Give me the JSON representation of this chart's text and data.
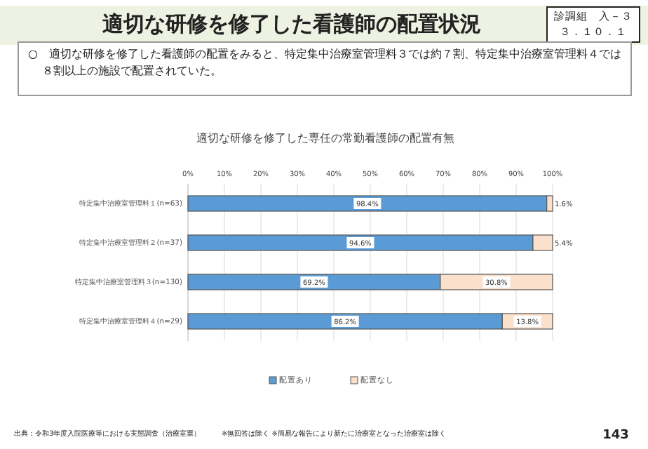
{
  "chart_data": {
    "type": "bar",
    "orientation": "horizontal",
    "stacked": true,
    "title": "適切な研修を修了した看護師の配置状況",
    "subtitle": "適切な研修を修了した専任の常勤看護師の配置有無",
    "annotations": [
      "診調組　入－３",
      "３．１０．１",
      "○　適切な研修を修了した看護師の配置をみると、特定集中治療室管理料３では約７割、特定集中治療室管理料４では８割以上の施設で配置されていた。",
      "出典：令和3年度入院医療等における実態調査（治療室票）",
      "※無回答は除く ※簡易な報告により新たに治療室となった治療室は除く",
      "143"
    ],
    "categories": [
      "特定集中治療室管理料１(n=63)",
      "特定集中治療室管理料２(n=37)",
      "特定集中治療室管理料３(n=130)",
      "特定集中治療室管理料４(n=29)"
    ],
    "series": [
      {
        "name": "配置あり",
        "color": "#5b9bd5",
        "values": [
          98.4,
          94.6,
          69.2,
          86.2
        ],
        "value_labels": [
          "98.4%",
          "94.6%",
          "69.2%",
          "86.2%"
        ]
      },
      {
        "name": "配置なし",
        "color": "#fbe0cc",
        "values": [
          1.6,
          5.4,
          30.8,
          13.8
        ],
        "value_labels": [
          "1.6%",
          "5.4%",
          "30.8%",
          "13.8%"
        ]
      }
    ],
    "xlim": [
      0,
      100
    ],
    "xticks": [
      {
        "value": 0,
        "label": "0%"
      },
      {
        "value": 10,
        "label": "10%"
      },
      {
        "value": 20,
        "label": "20%"
      },
      {
        "value": 30,
        "label": "30%"
      },
      {
        "value": 40,
        "label": "40%"
      },
      {
        "value": 50,
        "label": "50%"
      },
      {
        "value": 60,
        "label": "60%"
      },
      {
        "value": 70,
        "label": "70%"
      },
      {
        "value": 80,
        "label": "80%"
      },
      {
        "value": 90,
        "label": "90%"
      },
      {
        "value": 100,
        "label": "100%"
      }
    ],
    "grid": "x",
    "legend": "bottom"
  }
}
